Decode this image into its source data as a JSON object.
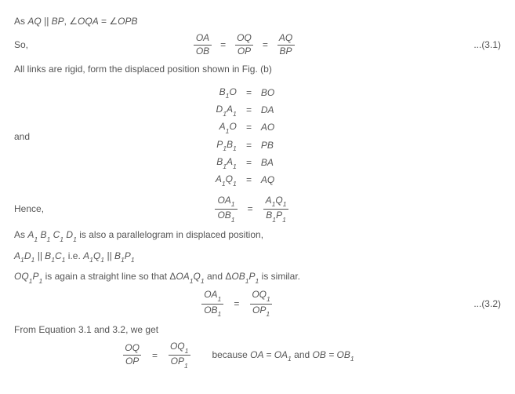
{
  "text": {
    "line1_prefix": "As ",
    "line1_par": "AQ || BP",
    "line1_comma": ", ∠",
    "line1_ang1": "OQA",
    "line1_eq": " = ∠",
    "line1_ang2": "OPB",
    "so": "So,",
    "all_rigid": "All links are rigid, form the displaced position shown in Fig. (b)",
    "and": "and",
    "hence": "Hence,",
    "as_para_prefix": "As ",
    "as_para_list": "A₁ B₁ C₁ D₁",
    "as_para_rest": " is also a parallelogram in displaced position,",
    "par2_a": "A₁D₁ || B₁C₁",
    "par2_ie": "  i.e.  ",
    "par2_b": "A₁Q₁ || B₁P₁",
    "straight_a": "OQ₁P₁",
    "straight_mid": " is again a straight line so that Δ",
    "straight_b": "OA₁Q₁",
    "straight_and": " and Δ",
    "straight_c": "OB₁P₁",
    "straight_end": " is similar.",
    "from_eq": "From Equation 3.1 and 3.2, we get",
    "because_pre": "because ",
    "because_a": "OA = OA₁",
    "because_and": " and ",
    "because_b": "OB = OB₁"
  },
  "eq31": {
    "f1n": "OA",
    "f1d": "OB",
    "f2n": "OQ",
    "f2d": "OP",
    "f3n": "AQ",
    "f3d": "BP",
    "num": "...(3.1)"
  },
  "aligned1": {
    "r1l": "B₁O",
    "r1r": "BO",
    "r2l": "D₁A₁",
    "r2r": "DA",
    "r3l": "A₁O",
    "r3r": "AO",
    "r4l": "P₁B₁",
    "r4r": "PB",
    "r5l": "B₁A₁",
    "r5r": "BA",
    "r6l": "A₁Q₁",
    "r6r": "AQ"
  },
  "henceEq": {
    "f1n": "OA₁",
    "f1d": "OB₁",
    "f2n": "A₁Q₁",
    "f2d": "B₁P₁"
  },
  "eq32": {
    "f1n": "OA₁",
    "f1d": "OB₁",
    "f2n": "OQ₁",
    "f2d": "OP₁",
    "num": "...(3.2)"
  },
  "finalEq": {
    "f1n": "OQ",
    "f1d": "OP",
    "f2n": "OQ₁",
    "f2d": "OP₁"
  },
  "sym": {
    "eq": "="
  }
}
